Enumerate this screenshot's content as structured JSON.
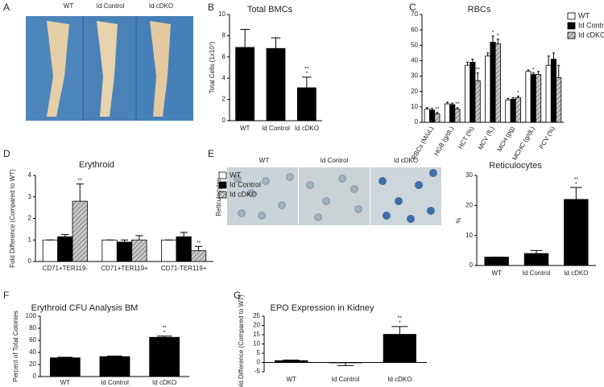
{
  "panels": {
    "A": {
      "letter": "A",
      "labels": [
        "WT",
        "Id Control",
        "Id cDKO"
      ]
    },
    "E": {
      "letter": "E",
      "side_label": "Reticulocytes",
      "labels": [
        "WT",
        "Id Control",
        "Id cDKO"
      ]
    }
  },
  "chart_data": [
    {
      "type": "bar",
      "panel": "B",
      "title": "Total BMCs",
      "y_label": "Total Cells (1x10⁷)",
      "categories": [
        "WT",
        "Id Control",
        "Id cDKO"
      ],
      "values": [
        6.9,
        6.8,
        3.1
      ],
      "errors": [
        1.7,
        1.0,
        1.0
      ],
      "annotations": [
        null,
        null,
        [
          "**",
          "*"
        ]
      ],
      "color": "#000000",
      "ylim": [
        0,
        10
      ],
      "yticks": [
        0,
        2,
        4,
        6,
        8,
        10
      ]
    },
    {
      "type": "bar",
      "panel": "C",
      "title": "RBCs",
      "categories": [
        "RBCs (M/uL)",
        "HGB (g/dL)",
        "HCT (%)",
        "MCV (fL)",
        "MCH (pg)",
        "MCHC (g/dL)",
        "PCV (%)"
      ],
      "series": [
        {
          "name": "WT",
          "color": "#ffffff",
          "values": [
            8.5,
            12,
            37,
            43,
            14.5,
            33,
            37
          ],
          "errors": [
            1,
            1,
            2,
            2,
            1,
            1,
            6
          ],
          "annotations": [
            null,
            null,
            null,
            null,
            null,
            null,
            null
          ]
        },
        {
          "name": "Id Control",
          "color": "#000000",
          "values": [
            8,
            11.5,
            39,
            52,
            15,
            31,
            41
          ],
          "errors": [
            1,
            1,
            2,
            4,
            1,
            1,
            4
          ],
          "annotations": [
            null,
            null,
            null,
            "*",
            null,
            "*",
            null
          ]
        },
        {
          "name": "Id cDKO",
          "color": "#b8b8b8",
          "pattern": "hatch",
          "values": [
            5.5,
            8.5,
            27,
            51,
            16,
            31,
            29
          ],
          "errors": [
            1,
            1,
            5,
            3,
            1,
            2,
            8
          ],
          "annotations": [
            "**",
            "**",
            "**",
            "*",
            "*",
            null,
            null
          ]
        }
      ],
      "legend": "upper right",
      "ylim": [
        0,
        70
      ],
      "yticks": [
        0,
        10,
        20,
        30,
        40,
        50,
        60,
        70
      ]
    },
    {
      "type": "bar",
      "panel": "D",
      "title": "Erythroid",
      "y_label": "Fold Difference (Compared to WT)",
      "categories": [
        "CD71+TER119-",
        "CD71+TER119+",
        "CD71-TER119+"
      ],
      "series": [
        {
          "name": "WT",
          "color": "#ffffff",
          "values": [
            1,
            1,
            1
          ],
          "errors": [
            0,
            0,
            0
          ],
          "annotations": [
            null,
            null,
            null
          ]
        },
        {
          "name": "Id Control",
          "color": "#000000",
          "values": [
            1.15,
            0.9,
            1.15
          ],
          "errors": [
            0.1,
            0.1,
            0.2
          ],
          "annotations": [
            null,
            null,
            null
          ]
        },
        {
          "name": "Id cDKO",
          "color": "#b8b8b8",
          "pattern": "hatch",
          "values": [
            2.8,
            1.0,
            0.5
          ],
          "errors": [
            0.8,
            0.2,
            0.2
          ],
          "annotations": [
            "**",
            null,
            "**"
          ]
        }
      ],
      "legend": "upper right",
      "ylim": [
        0,
        4
      ],
      "yticks": [
        0,
        1,
        2,
        3,
        4
      ]
    },
    {
      "type": "bar",
      "panel": "",
      "title": "Reticulocytes",
      "y_label": "%",
      "categories": [
        "WT",
        "Id Control",
        "Id cDKO"
      ],
      "values": [
        2.8,
        4,
        22
      ],
      "errors": [
        0,
        1,
        4
      ],
      "annotations": [
        null,
        null,
        [
          "**",
          "*"
        ]
      ],
      "color": "#000000",
      "ylim": [
        0,
        30
      ],
      "yticks": [
        0,
        10,
        20,
        30
      ]
    },
    {
      "type": "bar",
      "panel": "F",
      "title": "Erythroid CFU Analysis BM",
      "y_label": "Percent of Total Colonies",
      "categories": [
        "WT",
        "Id Control",
        "Id cDKO"
      ],
      "values": [
        31,
        33,
        65
      ],
      "errors": [
        1,
        1,
        2
      ],
      "annotations": [
        null,
        null,
        [
          "**",
          "*"
        ]
      ],
      "color": "#000000",
      "ylim": [
        0,
        100
      ],
      "yticks": [
        0,
        20,
        40,
        60,
        80,
        100
      ]
    },
    {
      "type": "bar",
      "panel": "G",
      "title": "EPO Expression in Kidney",
      "y_label": "Fold Difference (Compared to WT)",
      "categories": [
        "WT",
        "Id Control",
        "Id cDKO"
      ],
      "values": [
        1,
        -0.2,
        15.2
      ],
      "errors": [
        0.3,
        1.5,
        4.2
      ],
      "annotations": [
        null,
        null,
        [
          "**",
          "*"
        ]
      ],
      "color": "#000000",
      "ylim": [
        -5,
        25
      ],
      "yticks": [
        -5,
        0,
        5,
        10,
        15,
        20,
        25
      ]
    }
  ]
}
